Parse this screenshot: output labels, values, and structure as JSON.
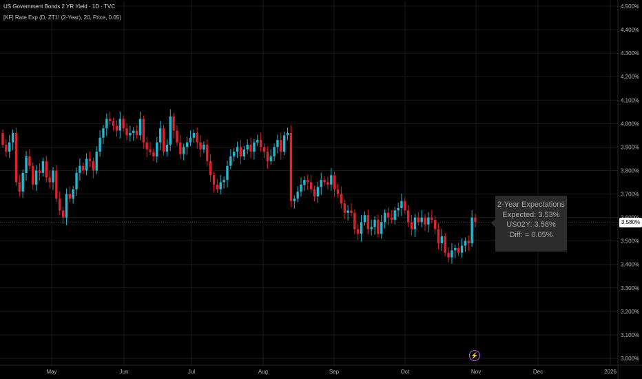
{
  "header": {
    "title": "US Government Bonds 2 YR Yield · 1D · TVC",
    "indicator": "[KF] Rate Exp (D, ZT1! (2-Year), 20, Price, 0.05)"
  },
  "tooltip": {
    "line1": "2-Year Expectations",
    "line2": "Expected: 3.53%",
    "line3": "US02Y: 3.58%",
    "line4": "Diff: = 0.05%"
  },
  "price_badge": "3.580%",
  "event_icon": "lightning-bolt-icon",
  "colors": {
    "up": "#22b8cf",
    "down": "#e0212e",
    "background": "#000000",
    "grid": "#1a1a1a",
    "tooltip_bg": "#2c2c2c",
    "event": "#b660e8"
  },
  "chart_data": {
    "type": "candlestick",
    "x_axis_labels": [
      "May",
      "Jun",
      "Jul",
      "Aug",
      "Sep",
      "Oct",
      "Nov",
      "Dec",
      "2026"
    ],
    "y_axis_labels": [
      "4.500%",
      "4.400%",
      "4.300%",
      "4.200%",
      "4.100%",
      "4.000%",
      "3.900%",
      "3.800%",
      "3.700%",
      "3.600%",
      "3.500%",
      "3.400%",
      "3.300%",
      "3.200%",
      "3.100%",
      "3.000%"
    ],
    "ylim": [
      3.0,
      4.5
    ],
    "last_price": 3.58,
    "closes": [
      3.91,
      3.88,
      3.92,
      3.96,
      3.75,
      3.71,
      3.79,
      3.86,
      3.82,
      3.74,
      3.8,
      3.79,
      3.84,
      3.77,
      3.75,
      3.8,
      3.68,
      3.63,
      3.6,
      3.7,
      3.68,
      3.72,
      3.79,
      3.82,
      3.8,
      3.85,
      3.84,
      3.8,
      3.88,
      3.94,
      3.98,
      4.02,
      4.01,
      3.99,
      3.97,
      4.02,
      3.98,
      3.95,
      3.96,
      3.97,
      3.95,
      4.02,
      3.92,
      3.89,
      3.88,
      3.86,
      3.92,
      3.98,
      3.88,
      3.91,
      4.03,
      3.97,
      3.92,
      3.87,
      3.9,
      3.92,
      3.94,
      3.96,
      3.92,
      3.89,
      3.91,
      3.84,
      3.78,
      3.74,
      3.72,
      3.75,
      3.76,
      3.82,
      3.86,
      3.88,
      3.9,
      3.86,
      3.89,
      3.91,
      3.88,
      3.92,
      3.93,
      3.9,
      3.88,
      3.84,
      3.86,
      3.9,
      3.93,
      3.88,
      3.95,
      3.96,
      3.67,
      3.68,
      3.71,
      3.74,
      3.76,
      3.75,
      3.72,
      3.69,
      3.73,
      3.76,
      3.75,
      3.74,
      3.78,
      3.72,
      3.7,
      3.66,
      3.62,
      3.63,
      3.62,
      3.55,
      3.53,
      3.58,
      3.61,
      3.55,
      3.56,
      3.59,
      3.53,
      3.58,
      3.62,
      3.6,
      3.59,
      3.63,
      3.64,
      3.67,
      3.63,
      3.58,
      3.55,
      3.6,
      3.58,
      3.6,
      3.57,
      3.6,
      3.59,
      3.55,
      3.49,
      3.52,
      3.45,
      3.43,
      3.46,
      3.47,
      3.45,
      3.48,
      3.5,
      3.49,
      3.6,
      3.58
    ]
  }
}
